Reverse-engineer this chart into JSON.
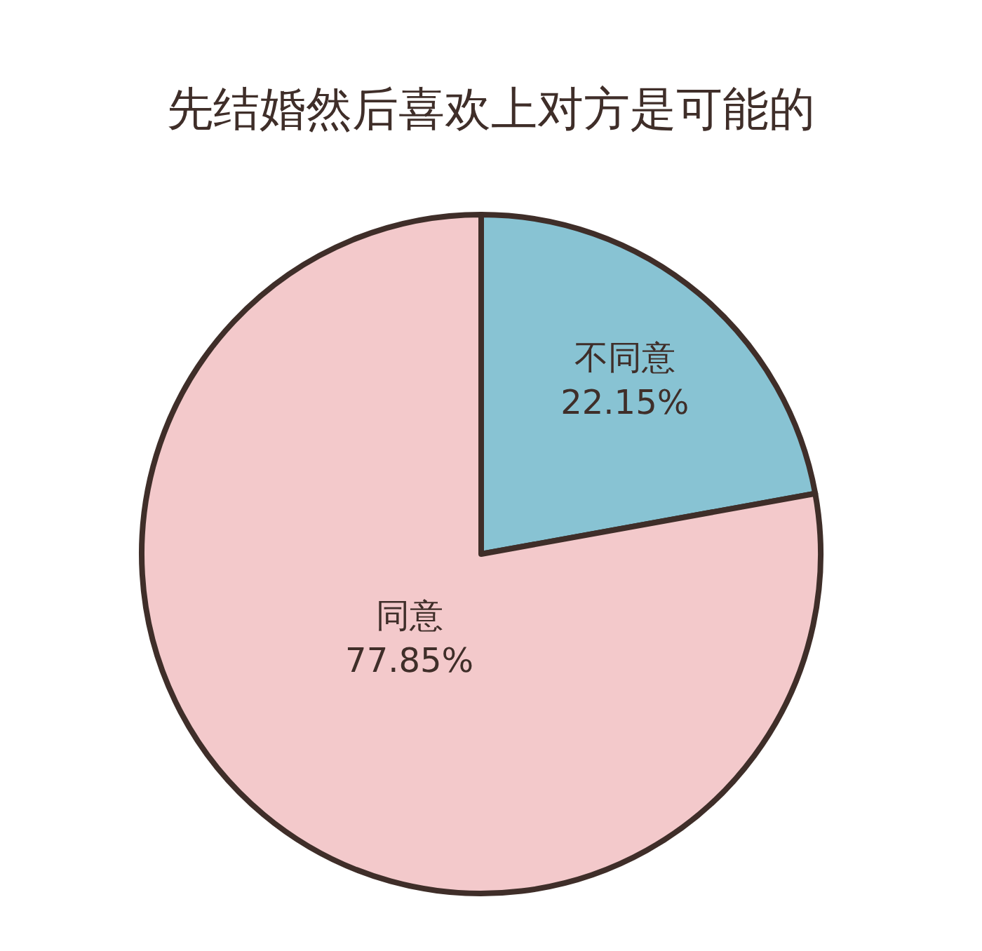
{
  "chart_data": {
    "type": "pie",
    "title": "先结婚然后喜欢上对方是可能的",
    "categories": [
      "不同意",
      "同意"
    ],
    "values": [
      22.15,
      77.85
    ],
    "colors": [
      "#88c3d3",
      "#f3c9cb"
    ],
    "value_labels": [
      "22.15%",
      "77.85%"
    ]
  }
}
